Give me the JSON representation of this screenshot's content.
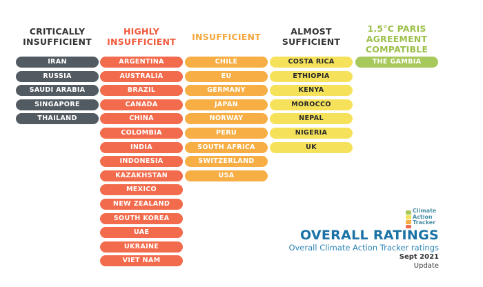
{
  "chart_data": {
    "type": "table",
    "categories": [
      {
        "name": "CRITICALLY\nINSUFFICIENT",
        "header_color": "#333333",
        "pill_color": "#525a62",
        "countries": [
          "IRAN",
          "RUSSIA",
          "SAUDI ARABIA",
          "SINGAPORE",
          "THAILAND"
        ]
      },
      {
        "name": "HIGHLY\nINSUFFICIENT",
        "header_color": "#f05a3c",
        "pill_color": "#f26b4c",
        "countries": [
          "ARGENTINA",
          "AUSTRALIA",
          "BRAZIL",
          "CANADA",
          "CHINA",
          "COLOMBIA",
          "INDIA",
          "INDONESIA",
          "KAZAKHSTAN",
          "MEXICO",
          "NEW ZEALAND",
          "SOUTH KOREA",
          "UAE",
          "UKRAINE",
          "VIET NAM"
        ]
      },
      {
        "name": "INSUFFICIENT",
        "header_color": "#f5a63a",
        "pill_color": "#f6ae45",
        "countries": [
          "CHILE",
          "EU",
          "GERMANY",
          "JAPAN",
          "NORWAY",
          "PERU",
          "SOUTH AFRICA",
          "SWITZERLAND",
          "USA"
        ]
      },
      {
        "name": "ALMOST\nSUFFICIENT",
        "header_color": "#333333",
        "pill_color": "#f6e25a",
        "text_color": "#2a2a2a",
        "countries": [
          "COSTA RICA",
          "ETHIOPIA",
          "KENYA",
          "MOROCCO",
          "NEPAL",
          "NIGERIA",
          "UK"
        ]
      },
      {
        "name": "1.5°C PARIS\nAGREEMENT\nCOMPATIBLE",
        "header_color": "#9cc04a",
        "pill_color": "#a7c85a",
        "countries": [
          "THE GAMBIA"
        ]
      }
    ]
  },
  "branding": {
    "line1": "Climate",
    "line2": "Action",
    "line3": "Tracker"
  },
  "footer": {
    "title": "OVERALL RATINGS",
    "subtitle": "Overall Climate Action Tracker ratings",
    "date": "Sept 2021",
    "note": "Update"
  }
}
